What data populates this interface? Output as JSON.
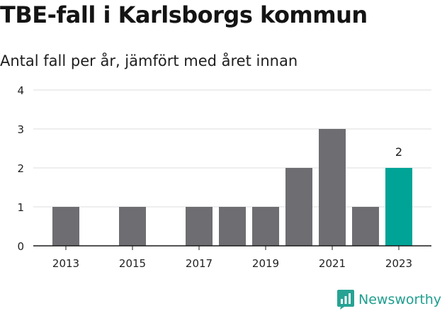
{
  "chart_data": {
    "type": "bar",
    "title": "TBE-fall i Karlsborgs kommun",
    "subtitle": "Antal fall per år, jämfört med året innan",
    "categories": [
      "2013",
      "2014",
      "2015",
      "2016",
      "2017",
      "2018",
      "2019",
      "2020",
      "2021",
      "2022",
      "2023"
    ],
    "values": [
      1,
      0,
      1,
      0,
      1,
      1,
      1,
      2,
      3,
      1,
      2
    ],
    "x_tick_labels": [
      "2013",
      "2015",
      "2017",
      "2019",
      "2021",
      "2023"
    ],
    "y_ticks": [
      0,
      1,
      2,
      3,
      4
    ],
    "ylim": [
      0,
      4
    ],
    "grid": true,
    "highlight_index": 10,
    "highlight_label": "2",
    "colors": {
      "bar": "#6e6d72",
      "highlight": "#00a497",
      "grid": "#dcdcdc",
      "axis": "#1a1a1a"
    }
  },
  "brand": {
    "name": "Newsworthy",
    "icon": "newsworthy-logo-icon"
  }
}
